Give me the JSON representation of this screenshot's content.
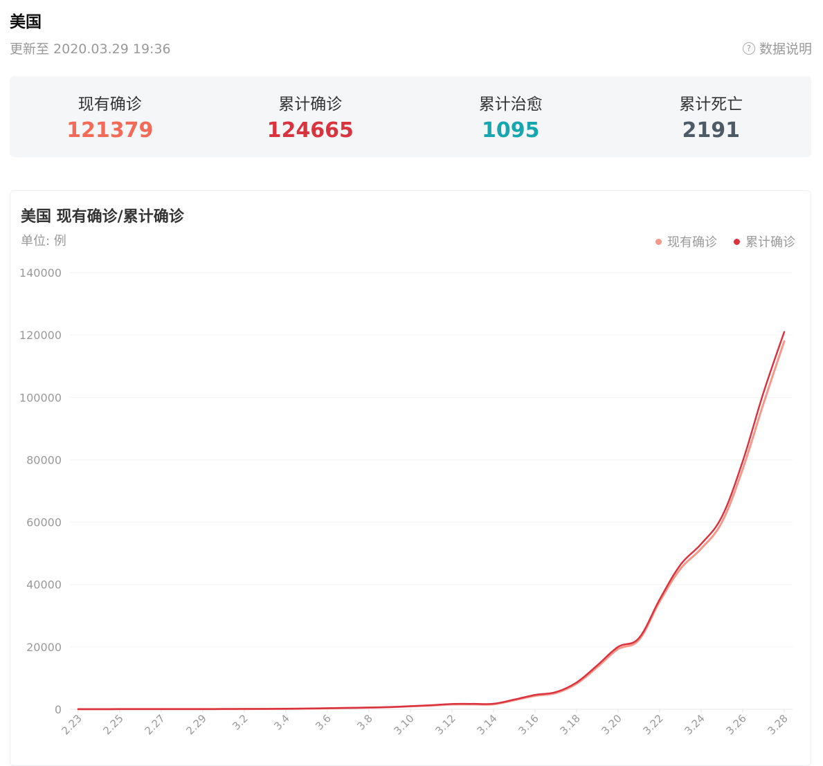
{
  "header": {
    "title": "美国",
    "update_text": "更新至 2020.03.29 19:36",
    "help_label": "数据说明",
    "help_icon": "?"
  },
  "stats": [
    {
      "label": "现有确诊",
      "value": "121379",
      "color": "#f46a58"
    },
    {
      "label": "累计确诊",
      "value": "124665",
      "color": "#d9333f"
    },
    {
      "label": "累计治愈",
      "value": "1095",
      "color": "#17a6ad"
    },
    {
      "label": "累计死亡",
      "value": "2191",
      "color": "#4e5a65"
    }
  ],
  "chart_card": {
    "title": "美国 现有确诊/累计确诊",
    "unit": "单位: 例"
  },
  "chart_data": {
    "type": "line",
    "title": "美国 现有确诊/累计确诊",
    "ylim": [
      0,
      140000
    ],
    "yticks": [
      "0",
      "20000",
      "40000",
      "60000",
      "80000",
      "100000",
      "120000",
      "140000"
    ],
    "x": [
      "2.23",
      "2.24",
      "2.25",
      "2.26",
      "2.27",
      "2.28",
      "2.29",
      "3.1",
      "3.2",
      "3.3",
      "3.4",
      "3.5",
      "3.6",
      "3.7",
      "3.8",
      "3.9",
      "3.10",
      "3.11",
      "3.12",
      "3.13",
      "3.14",
      "3.15",
      "3.16",
      "3.17",
      "3.18",
      "3.19",
      "3.20",
      "3.21",
      "3.22",
      "3.23",
      "3.24",
      "3.25",
      "3.26",
      "3.27",
      "3.28"
    ],
    "xtick_labels": [
      "2.23",
      "2.25",
      "2.27",
      "2.29",
      "3.2",
      "3.4",
      "3.6",
      "3.8",
      "3.10",
      "3.12",
      "3.14",
      "3.16",
      "3.18",
      "3.20",
      "3.22",
      "3.24",
      "3.26",
      "3.28"
    ],
    "grid": true,
    "legend_position": "top-right",
    "series": [
      {
        "name": "现有确诊",
        "color": "#f4988a",
        "values": [
          35,
          35,
          45,
          45,
          50,
          55,
          62,
          70,
          95,
          115,
          150,
          210,
          300,
          420,
          530,
          690,
          950,
          1200,
          1550,
          1570,
          1600,
          2900,
          4300,
          5200,
          8200,
          13500,
          19300,
          22200,
          34500,
          45000,
          51500,
          60000,
          77000,
          98000,
          118000
        ]
      },
      {
        "name": "累计确诊",
        "color": "#d9333f",
        "values": [
          35,
          35,
          45,
          45,
          50,
          55,
          62,
          74,
          100,
          124,
          158,
          221,
          319,
          435,
          541,
          704,
          994,
          1301,
          1697,
          1734,
          1770,
          3100,
          4600,
          5500,
          8600,
          14100,
          20000,
          22800,
          35200,
          46300,
          53000,
          61800,
          79500,
          101500,
          121000
        ]
      }
    ]
  }
}
